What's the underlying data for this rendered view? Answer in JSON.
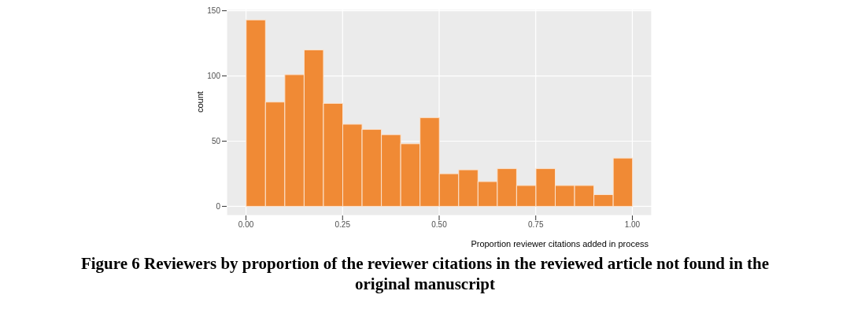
{
  "chart_data": {
    "type": "histogram",
    "title": "Figure 6 Reviewers by proportion of the reviewer citations in the reviewed article not found in the original  manuscript",
    "xlabel": "Proportion reviewer citations added in process",
    "ylabel": "count",
    "bins": [
      0,
      0.05,
      0.1,
      0.15,
      0.2,
      0.25,
      0.3,
      0.35,
      0.4,
      0.45,
      0.5,
      0.55,
      0.6,
      0.65,
      0.7,
      0.75,
      0.8,
      0.85,
      0.9,
      0.95,
      1.0
    ],
    "values": [
      143,
      80,
      101,
      120,
      79,
      63,
      59,
      55,
      48,
      68,
      25,
      28,
      19,
      29,
      16,
      29,
      16,
      16,
      9,
      37
    ],
    "color": "#f08a35",
    "xlim": [
      -0.05,
      1.05
    ],
    "xticks": [
      {
        "value": 0,
        "label": "0.00"
      },
      {
        "value": 0.25,
        "label": "0.25"
      },
      {
        "value": 0.5,
        "label": "0.50"
      },
      {
        "value": 0.75,
        "label": "0.75"
      },
      {
        "value": 1,
        "label": "1.00"
      }
    ],
    "ylim": [
      -7,
      151
    ],
    "yticks": [
      0,
      50,
      100,
      150
    ],
    "grid": true
  }
}
